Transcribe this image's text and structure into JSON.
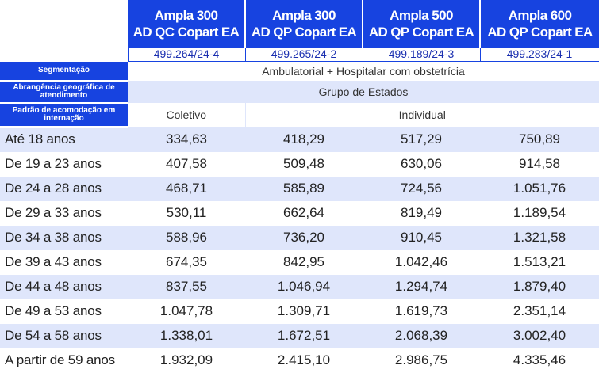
{
  "plans": [
    {
      "line1": "Ampla 300",
      "line2": "AD QC Copart EA",
      "registry": "499.264/24-4"
    },
    {
      "line1": "Ampla 300",
      "line2": "AD QP Copart EA",
      "registry": "499.265/24-2"
    },
    {
      "line1": "Ampla 500",
      "line2": "AD QP Copart EA",
      "registry": "499.189/24-3"
    },
    {
      "line1": "Ampla 600",
      "line2": "AD QP Copart EA",
      "registry": "499.283/24-1"
    }
  ],
  "segmentacao": {
    "label": "Segmentação",
    "value": "Ambulatorial + Hospitalar com obstetrícia"
  },
  "abrangencia": {
    "label": "Abrangência geográfica de atendimento",
    "value": "Grupo de Estados"
  },
  "acomodacao": {
    "label": "Padrão de acomodação em internação",
    "coletivo": "Coletivo",
    "individual": "Individual"
  },
  "prices": [
    {
      "age": "Até 18 anos",
      "values": [
        "334,63",
        "418,29",
        "517,29",
        "750,89"
      ]
    },
    {
      "age": "De 19 a 23 anos",
      "values": [
        "407,58",
        "509,48",
        "630,06",
        "914,58"
      ]
    },
    {
      "age": "De 24 a 28 anos",
      "values": [
        "468,71",
        "585,89",
        "724,56",
        "1.051,76"
      ]
    },
    {
      "age": "De 29 a 33 anos",
      "values": [
        "530,11",
        "662,64",
        "819,49",
        "1.189,54"
      ]
    },
    {
      "age": "De 34 a 38 anos",
      "values": [
        "588,96",
        "736,20",
        "910,45",
        "1.321,58"
      ]
    },
    {
      "age": "De 39 a 43 anos",
      "values": [
        "674,35",
        "842,95",
        "1.042,46",
        "1.513,21"
      ]
    },
    {
      "age": "De 44 a 48 anos",
      "values": [
        "837,55",
        "1.046,94",
        "1.294,74",
        "1.879,40"
      ]
    },
    {
      "age": "De 49 a 53 anos",
      "values": [
        "1.047,78",
        "1.309,71",
        "1.619,73",
        "2.351,14"
      ]
    },
    {
      "age": "De 54 a 58 anos",
      "values": [
        "1.338,01",
        "1.672,51",
        "2.068,39",
        "3.002,40"
      ]
    },
    {
      "age": "A partir de 59 anos",
      "values": [
        "1.932,09",
        "2.415,10",
        "2.986,75",
        "4.335,46"
      ]
    }
  ],
  "colors": {
    "header_blue": "#1743e0",
    "stripe": "#dfe6fb"
  }
}
